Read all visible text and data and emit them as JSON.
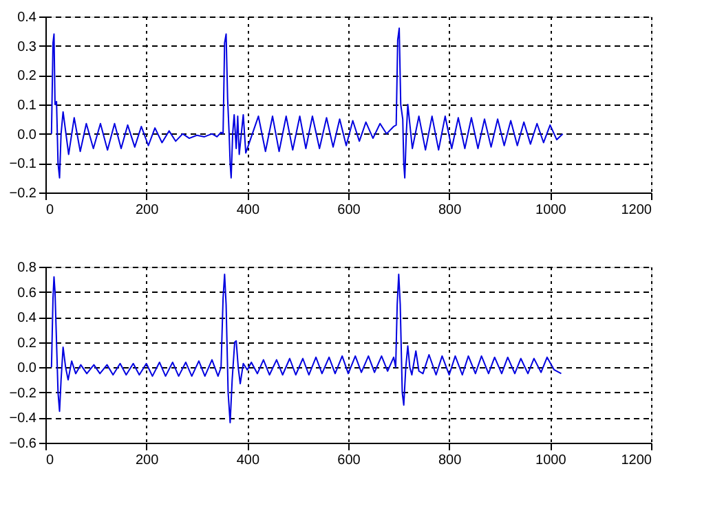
{
  "chart_data": [
    {
      "type": "line",
      "xlim": [
        0,
        1200
      ],
      "xticks": [
        0,
        200,
        400,
        600,
        800,
        1000,
        1200
      ],
      "ylim": [
        -0.2,
        0.4
      ],
      "yticks": [
        -0.2,
        -0.1,
        {
          "value": 0,
          "label": "0.0"
        },
        0.1,
        0.2,
        0.3,
        0.4
      ],
      "grid": true,
      "line_style": "solid",
      "series": [
        {
          "color": "#0000e0",
          "x": [
            12,
            15,
            17,
            19,
            22,
            25,
            28,
            31,
            35,
            46,
            57,
            69,
            81,
            95,
            109,
            123,
            137,
            150,
            163,
            177,
            190,
            204,
            217,
            231,
            245,
            258,
            272,
            285,
            300,
            315,
            330,
            340,
            348,
            352,
            355,
            358,
            361,
            364,
            366,
            368,
            371,
            374,
            378,
            381,
            384,
            392,
            397,
            422,
            436,
            450,
            463,
            477,
            490,
            504,
            516,
            529,
            543,
            557,
            570,
            583,
            596,
            609,
            622,
            635,
            649,
            663,
            676,
            690,
            695,
            698,
            701,
            704,
            708,
            710,
            712,
            715,
            718,
            727,
            740,
            753,
            766,
            779,
            792,
            805,
            818,
            831,
            844,
            857,
            870,
            883,
            896,
            909,
            922,
            935,
            948,
            961,
            974,
            987,
            1000,
            1013,
            1025
          ],
          "values": [
            0,
            0.31,
            0.34,
            0.1,
            0.11,
            -0.1,
            -0.15,
            0.0,
            0.075,
            -0.07,
            0.055,
            -0.06,
            0.035,
            -0.05,
            0.035,
            -0.055,
            0.035,
            -0.05,
            0.03,
            -0.045,
            0.025,
            -0.04,
            0.02,
            -0.03,
            0.01,
            -0.025,
            0.0,
            -0.015,
            -0.005,
            -0.01,
            0.0,
            -0.01,
            0.005,
            0.0,
            0.31,
            0.34,
            0.12,
            0.0,
            -0.1,
            -0.15,
            0.0,
            0.065,
            -0.05,
            0.06,
            -0.07,
            0.065,
            -0.065,
            0.06,
            -0.06,
            0.06,
            -0.06,
            0.06,
            -0.055,
            0.06,
            -0.05,
            0.06,
            -0.05,
            0.055,
            -0.045,
            0.05,
            -0.04,
            0.045,
            -0.025,
            0.04,
            -0.015,
            0.035,
            0.0,
            0.025,
            0.03,
            0.32,
            0.36,
            0.1,
            0.05,
            -0.1,
            -0.15,
            0.0,
            0.1,
            -0.05,
            0.06,
            -0.055,
            0.06,
            -0.055,
            0.06,
            -0.05,
            0.055,
            -0.05,
            0.055,
            -0.05,
            0.05,
            -0.045,
            0.05,
            -0.04,
            0.045,
            -0.04,
            0.04,
            -0.035,
            0.035,
            -0.03,
            0.03,
            -0.02,
            0.0
          ]
        }
      ]
    },
    {
      "type": "line",
      "xlim": [
        0,
        1200
      ],
      "xticks": [
        0,
        200,
        400,
        600,
        800,
        1000,
        1200
      ],
      "ylim": [
        -0.6,
        0.8
      ],
      "yticks": [
        -0.6,
        -0.4,
        -0.2,
        {
          "value": 0,
          "label": "0.0"
        },
        0.2,
        0.4,
        0.6,
        0.8
      ],
      "grid": true,
      "line_style": "solid",
      "series": [
        {
          "color": "#0000e0",
          "x": [
            12,
            15,
            17,
            19,
            22,
            25,
            28,
            31,
            35,
            40,
            45,
            52,
            60,
            70,
            82,
            96,
            108,
            122,
            134,
            148,
            160,
            174,
            186,
            200,
            212,
            226,
            238,
            252,
            264,
            278,
            290,
            304,
            316,
            330,
            342,
            348,
            352,
            355,
            358,
            362,
            366,
            370,
            375,
            378,
            382,
            386,
            392,
            400,
            408,
            420,
            432,
            444,
            458,
            470,
            484,
            496,
            510,
            522,
            536,
            548,
            562,
            574,
            588,
            600,
            614,
            626,
            640,
            652,
            666,
            678,
            690,
            694,
            697,
            700,
            703,
            707,
            710,
            714,
            718,
            722,
            726,
            734,
            740,
            748,
            760,
            774,
            786,
            800,
            812,
            826,
            838,
            852,
            864,
            878,
            890,
            904,
            916,
            930,
            942,
            956,
            968,
            982,
            994,
            1008,
            1022
          ],
          "values": [
            0,
            0.55,
            0.72,
            0.6,
            0.2,
            -0.2,
            -0.35,
            -0.1,
            0.16,
            0.0,
            -0.1,
            0.05,
            -0.05,
            0.02,
            -0.05,
            0.02,
            -0.05,
            0.02,
            -0.06,
            0.03,
            -0.06,
            0.03,
            -0.06,
            0.03,
            -0.07,
            0.04,
            -0.07,
            0.04,
            -0.07,
            0.04,
            -0.07,
            0.05,
            -0.07,
            0.06,
            -0.07,
            0.0,
            0.55,
            0.74,
            0.5,
            -0.2,
            -0.44,
            -0.1,
            0.2,
            0.21,
            0.0,
            -0.13,
            0.03,
            -0.02,
            0.04,
            -0.05,
            0.06,
            -0.06,
            0.06,
            -0.06,
            0.07,
            -0.06,
            0.07,
            -0.06,
            0.08,
            -0.05,
            0.08,
            -0.05,
            0.09,
            -0.05,
            0.09,
            -0.04,
            0.09,
            -0.04,
            0.09,
            -0.03,
            0.08,
            0.0,
            0.5,
            0.74,
            0.5,
            -0.2,
            -0.3,
            0.0,
            0.17,
            0.0,
            -0.06,
            0.13,
            -0.03,
            -0.05,
            0.1,
            -0.06,
            0.09,
            -0.06,
            0.09,
            -0.06,
            0.09,
            -0.05,
            0.09,
            -0.05,
            0.08,
            -0.05,
            0.08,
            -0.05,
            0.07,
            -0.05,
            0.07,
            -0.04,
            0.08,
            -0.02,
            -0.05
          ]
        }
      ]
    }
  ]
}
